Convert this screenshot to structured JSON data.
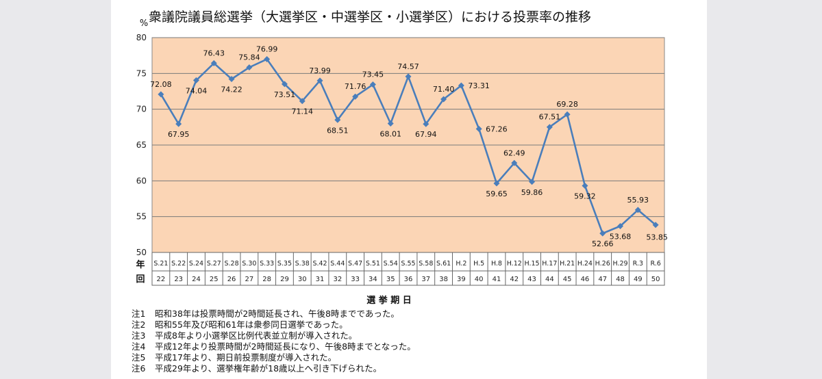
{
  "chart_data": {
    "type": "line",
    "title": "衆議院議員総選挙（大選挙区・中選挙区・小選挙区）における投票率の推移",
    "ylabel": "%",
    "xlabel": "選 挙 期 日",
    "row_label_year": "年",
    "row_label_round": "回",
    "ylim": [
      50,
      80
    ],
    "yticks": [
      50,
      55,
      60,
      65,
      70,
      75,
      80
    ],
    "grid": true,
    "plot_background": "#fbd5b5",
    "line_color": "#4a7ebb",
    "categories": [
      "S.21",
      "S.22",
      "S.24",
      "S.27",
      "S.28",
      "S.30",
      "S.33",
      "S.35",
      "S.38",
      "S.42",
      "S.44",
      "S.47",
      "S.51",
      "S.54",
      "S.55",
      "S.58",
      "S.61",
      "H.2",
      "H.5",
      "H.8",
      "H.12",
      "H.15",
      "H.17",
      "H.21",
      "H.24",
      "H.26",
      "H.29",
      "R.3",
      "R.6"
    ],
    "rounds": [
      "22",
      "23",
      "24",
      "25",
      "26",
      "27",
      "28",
      "29",
      "30",
      "31",
      "32",
      "33",
      "34",
      "35",
      "36",
      "37",
      "38",
      "39",
      "40",
      "41",
      "42",
      "43",
      "44",
      "45",
      "46",
      "47",
      "48",
      "49",
      "50"
    ],
    "values": [
      72.08,
      67.95,
      74.04,
      76.43,
      74.22,
      75.84,
      76.99,
      73.51,
      71.14,
      73.99,
      68.51,
      71.76,
      73.45,
      68.01,
      74.57,
      67.94,
      71.4,
      73.31,
      67.26,
      59.65,
      62.49,
      59.86,
      67.51,
      69.28,
      59.32,
      52.66,
      53.68,
      55.93,
      53.85
    ],
    "labels": [
      "72.08",
      "67.95",
      "74.04",
      "76.43",
      "74.22",
      "75.84",
      "76.99",
      "73.51",
      "71.14",
      "73.99",
      "68.51",
      "71.76",
      "73.45",
      "68.01",
      "74.57",
      "67.94",
      "71.40",
      "73.31",
      "67.26",
      "59.65",
      "62.49",
      "59.86",
      "67.51",
      "69.28",
      "59.32",
      "52.66",
      "53.68",
      "55.93",
      "53.85"
    ]
  },
  "notes": [
    {
      "key": "注1",
      "text": "昭和38年は投票時間が2時間延長され、午後8時までであった。"
    },
    {
      "key": "注2",
      "text": "昭和55年及び昭和61年は衆参同日選挙であった。"
    },
    {
      "key": "注3",
      "text": "平成8年より小選挙区比例代表並立制が導入された。"
    },
    {
      "key": "注4",
      "text": "平成12年より投票時間が2時間延長になり、午後8時までとなった。"
    },
    {
      "key": "注5",
      "text": "平成17年より、期日前投票制度が導入された。"
    },
    {
      "key": "注6",
      "text": "平成29年より、選挙権年齢が18歳以上へ引き下げられた。"
    }
  ]
}
